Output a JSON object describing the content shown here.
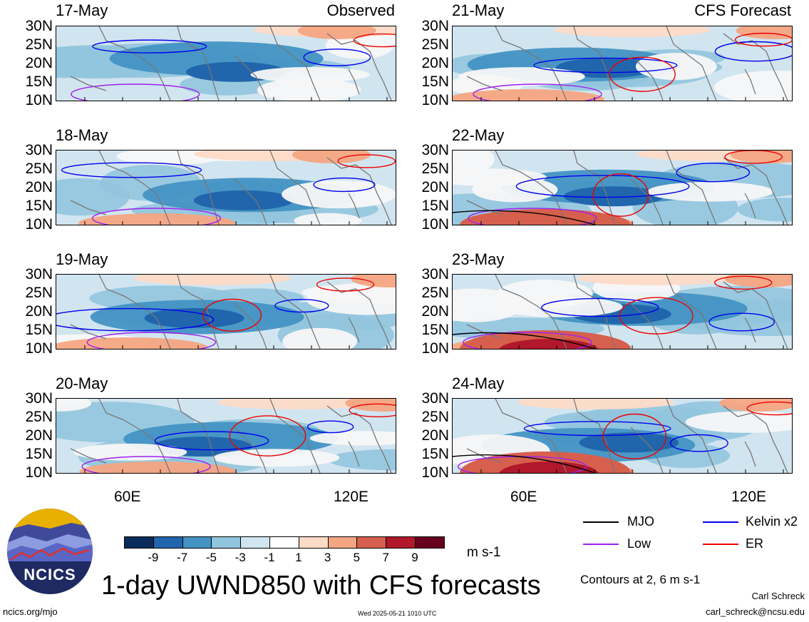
{
  "panels": [
    {
      "date": "17-May",
      "tag": "Observed",
      "col": 0,
      "row": 0
    },
    {
      "date": "18-May",
      "tag": "",
      "col": 0,
      "row": 1
    },
    {
      "date": "19-May",
      "tag": "",
      "col": 0,
      "row": 2
    },
    {
      "date": "20-May",
      "tag": "",
      "col": 0,
      "row": 3
    },
    {
      "date": "21-May",
      "tag": "CFS Forecast",
      "col": 1,
      "row": 0
    },
    {
      "date": "22-May",
      "tag": "",
      "col": 1,
      "row": 1
    },
    {
      "date": "23-May",
      "tag": "",
      "col": 1,
      "row": 2
    },
    {
      "date": "24-May",
      "tag": "",
      "col": 1,
      "row": 3
    }
  ],
  "lat_labels": [
    "30N",
    "25N",
    "20N",
    "15N",
    "10N"
  ],
  "lon_labels": [
    "60E",
    "120E"
  ],
  "colorbar": {
    "colors": [
      "#0a2c5c",
      "#2166ac",
      "#4393c3",
      "#92c5de",
      "#d1e5f0",
      "#ffffff",
      "#fddbc7",
      "#f4a582",
      "#d6604d",
      "#b2182b",
      "#67001f"
    ],
    "labels": [
      "-9",
      "-7",
      "-5",
      "-3",
      "-1",
      "1",
      "3",
      "5",
      "7",
      "9"
    ],
    "unit": "m s-1"
  },
  "legend": {
    "items": [
      {
        "label": "MJO",
        "color": "#000000"
      },
      {
        "label": "Kelvin x2",
        "color": "#0000ee"
      },
      {
        "label": "Low",
        "color": "#a020f0"
      },
      {
        "label": "ER",
        "color": "#ee0000"
      }
    ],
    "contours_note": "Contours at 2, 6 m s-1"
  },
  "title": "1-day UWND850 with CFS forecasts",
  "logo_text": "NCICS",
  "url": "ncics.org/mjo",
  "timestamp": "Wed 2025-05-21 1010 UTC",
  "author": "Carl Schreck",
  "email": "carl_schreck@ncsu.edu"
}
